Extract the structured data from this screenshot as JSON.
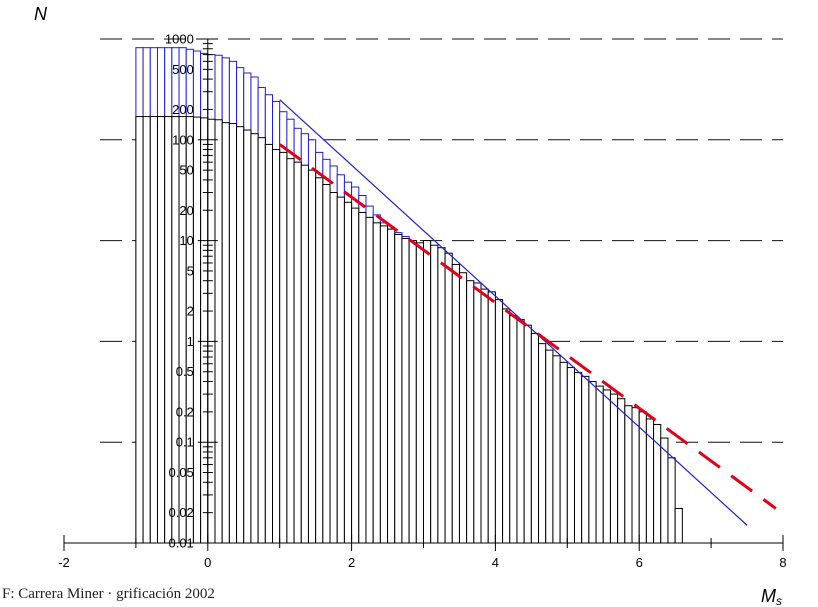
{
  "caption": "F: Carrera Miner · grificación 2002",
  "chart_data": {
    "type": "bar",
    "y_scale": "log",
    "xlim": [
      -2,
      8
    ],
    "ylim": [
      0.01,
      1000
    ],
    "x_ticks": [
      -2,
      0,
      2,
      4,
      6,
      8
    ],
    "y_ticks": [
      0.01,
      0.02,
      0.05,
      0.1,
      0.2,
      0.5,
      1,
      2,
      5,
      10,
      20,
      50,
      100,
      200,
      500,
      1000
    ],
    "y_tick_labels": [
      "0.01",
      "0.02",
      "0.05",
      "0.1",
      "0.2",
      "0.5",
      "1",
      "2",
      "5",
      "10",
      "20",
      "50",
      "100",
      "200",
      "500",
      "1000"
    ],
    "gridlines_y": [
      0.1,
      1,
      10,
      100,
      1000
    ],
    "grid": "dashed-horizontal-at-decades",
    "ylabel": "N",
    "xlabel_main": "M",
    "xlabel_sub": "s",
    "bin_width": 0.1,
    "series": [
      {
        "color": "#1f1fd6",
        "bin_starts": [
          -1.0,
          -0.9,
          -0.8,
          -0.7,
          -0.6,
          -0.5,
          -0.4,
          -0.3,
          -0.2,
          -0.1,
          0.0,
          0.1,
          0.2,
          0.3,
          0.4,
          0.5,
          0.6,
          0.7,
          0.8,
          0.9,
          1.0,
          1.1,
          1.2,
          1.3,
          1.4,
          1.5,
          1.6,
          1.7,
          1.8,
          1.9,
          2.0,
          2.1,
          2.2,
          2.3,
          2.4,
          2.5,
          2.6,
          2.7,
          2.8
        ],
        "values": [
          820,
          820,
          820,
          820,
          820,
          820,
          820,
          790,
          760,
          720,
          700,
          690,
          650,
          600,
          520,
          460,
          420,
          330,
          280,
          240,
          190,
          160,
          130,
          115,
          100,
          75,
          64,
          55,
          45,
          38,
          34,
          28,
          22,
          18,
          15,
          13,
          12,
          11,
          10
        ]
      },
      {
        "color": "#000000",
        "bin_starts": [
          -1.0,
          -0.9,
          -0.8,
          -0.7,
          -0.6,
          -0.5,
          -0.4,
          -0.3,
          -0.2,
          -0.1,
          0.0,
          0.1,
          0.2,
          0.3,
          0.4,
          0.5,
          0.6,
          0.7,
          0.8,
          0.9,
          1.0,
          1.1,
          1.2,
          1.3,
          1.4,
          1.5,
          1.6,
          1.7,
          1.8,
          1.9,
          2.0,
          2.1,
          2.2,
          2.3,
          2.4,
          2.5,
          2.6,
          2.7,
          2.8,
          2.9,
          3.0,
          3.1,
          3.2,
          3.3,
          3.4,
          3.5,
          3.6,
          3.7,
          3.8,
          3.9,
          4.0,
          4.1,
          4.2,
          4.3,
          4.4,
          4.5,
          4.6,
          4.7,
          4.8,
          4.9,
          5.0,
          5.1,
          5.2,
          5.3,
          5.4,
          5.5,
          5.6,
          5.7,
          5.8,
          5.9,
          6.0,
          6.1,
          6.2,
          6.3,
          6.4,
          6.5,
          6.6,
          6.7,
          6.8
        ],
        "values": [
          170,
          170,
          170,
          170,
          170,
          170,
          170,
          170,
          168,
          165,
          160,
          158,
          148,
          145,
          135,
          125,
          115,
          105,
          90,
          80,
          75,
          65,
          60,
          56,
          50,
          42,
          36,
          30,
          27,
          24,
          21,
          19,
          17,
          15,
          14,
          13,
          11.5,
          10.5,
          10,
          9.5,
          10,
          9,
          8.5,
          7.5,
          5.8,
          4.8,
          4,
          3.8,
          3.3,
          3.1,
          2.6,
          2.1,
          1.8,
          1.65,
          1.45,
          1.2,
          0.95,
          0.82,
          0.72,
          0.62,
          0.55,
          0.49,
          0.45,
          0.4,
          0.36,
          0.33,
          0.3,
          0.27,
          0.23,
          0.22,
          0.2,
          0.17,
          0.15,
          0.11,
          0.07,
          0.022,
          null,
          null,
          null
        ]
      }
    ],
    "fit_lines": [
      {
        "color": "#1f1fd6",
        "style": "solid",
        "points": [
          [
            1.0,
            250
          ],
          [
            7.5,
            0.015
          ]
        ]
      },
      {
        "color": "#e0001a",
        "style": "dashed",
        "points": [
          [
            1.0,
            90
          ],
          [
            7.9,
            0.022
          ]
        ]
      }
    ]
  }
}
